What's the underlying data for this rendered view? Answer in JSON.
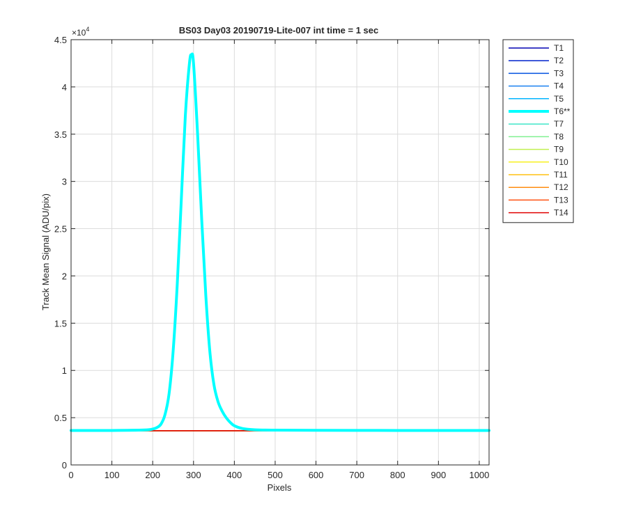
{
  "chart_data": {
    "type": "line",
    "title": "BS03 Day03 20190719-Lite-007 int time = 1 sec",
    "xlabel": "Pixels",
    "ylabel": "Track Mean Signal (ADU/pix)",
    "y_exponent_label": "×10",
    "y_exponent": "4",
    "xlim": [
      0,
      1024
    ],
    "ylim": [
      0,
      45000
    ],
    "x_ticks": [
      0,
      100,
      200,
      300,
      400,
      500,
      600,
      700,
      800,
      900,
      1000
    ],
    "x_tick_labels": [
      "0",
      "100",
      "200",
      "300",
      "400",
      "500",
      "600",
      "700",
      "800",
      "900",
      "1000"
    ],
    "y_ticks": [
      0,
      5000,
      10000,
      15000,
      20000,
      25000,
      30000,
      35000,
      40000,
      45000
    ],
    "y_tick_labels": [
      "0",
      "0.5",
      "1",
      "1.5",
      "2",
      "2.5",
      "3",
      "3.5",
      "4",
      "4.5"
    ],
    "grid": true,
    "legend_position": "outside-right-top",
    "series": [
      {
        "name": "T1",
        "color": "#0000b3",
        "width": 1.5,
        "x": [
          0,
          1024
        ],
        "y": [
          3620,
          3620
        ]
      },
      {
        "name": "T2",
        "color": "#0022cc",
        "width": 1.5,
        "x": [
          0,
          1024
        ],
        "y": [
          3620,
          3620
        ]
      },
      {
        "name": "T3",
        "color": "#0050e0",
        "width": 1.5,
        "x": [
          0,
          1024
        ],
        "y": [
          3620,
          3620
        ]
      },
      {
        "name": "T4",
        "color": "#1a80f0",
        "width": 1.5,
        "x": [
          0,
          1024
        ],
        "y": [
          3620,
          3620
        ]
      },
      {
        "name": "T5",
        "color": "#00b4ff",
        "width": 1.5,
        "x": [
          0,
          1024
        ],
        "y": [
          3620,
          3620
        ]
      },
      {
        "name": "T7",
        "color": "#40e6c8",
        "width": 1.5,
        "x": [
          0,
          1024
        ],
        "y": [
          3620,
          3620
        ]
      },
      {
        "name": "T8",
        "color": "#80f090",
        "width": 1.5,
        "x": [
          0,
          1024
        ],
        "y": [
          3620,
          3620
        ]
      },
      {
        "name": "T9",
        "color": "#c0f050",
        "width": 1.5,
        "x": [
          0,
          1024
        ],
        "y": [
          3620,
          3620
        ]
      },
      {
        "name": "T10",
        "color": "#f8f020",
        "width": 1.5,
        "x": [
          0,
          1024
        ],
        "y": [
          3620,
          3620
        ]
      },
      {
        "name": "T11",
        "color": "#ffc010",
        "width": 1.5,
        "x": [
          0,
          1024
        ],
        "y": [
          3620,
          3620
        ]
      },
      {
        "name": "T12",
        "color": "#ff8c10",
        "width": 1.5,
        "x": [
          0,
          1024
        ],
        "y": [
          3620,
          3620
        ]
      },
      {
        "name": "T13",
        "color": "#ff5010",
        "width": 1.5,
        "x": [
          0,
          1024
        ],
        "y": [
          3620,
          3620
        ]
      },
      {
        "name": "T14",
        "color": "#e00000",
        "width": 1.5,
        "x": [
          0,
          1024
        ],
        "y": [
          3620,
          3620
        ]
      },
      {
        "name": "T6**",
        "color": "#00ffff",
        "width": 4,
        "x": [
          0,
          100,
          180,
          200,
          210,
          220,
          230,
          240,
          250,
          260,
          270,
          280,
          290,
          295,
          300,
          310,
          320,
          330,
          340,
          350,
          360,
          370,
          380,
          390,
          400,
          420,
          450,
          500,
          600,
          800,
          1024
        ],
        "y": [
          3650,
          3650,
          3700,
          3800,
          3950,
          4300,
          5300,
          7500,
          12000,
          19000,
          28000,
          37000,
          42500,
          43400,
          42500,
          35000,
          26000,
          18000,
          12000,
          8500,
          6700,
          5700,
          5000,
          4500,
          4150,
          3850,
          3720,
          3680,
          3660,
          3650,
          3650
        ]
      }
    ],
    "legend_order": [
      "T1",
      "T2",
      "T3",
      "T4",
      "T5",
      "T6**",
      "T7",
      "T8",
      "T9",
      "T10",
      "T11",
      "T12",
      "T13",
      "T14"
    ]
  }
}
